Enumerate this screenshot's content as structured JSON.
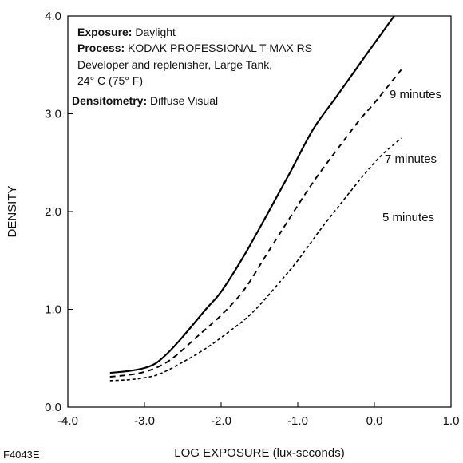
{
  "figure_id": "F4043E",
  "annotation": {
    "lines": [
      {
        "bold": "Exposure:",
        "text": " Daylight"
      },
      {
        "bold": "Process:",
        "text": " KODAK PROFESSIONAL T-MAX RS"
      },
      {
        "bold": "",
        "text": "Developer and replenisher, Large Tank,"
      },
      {
        "bold": "",
        "text": "24° C (75° F)"
      },
      {
        "bold": "Densitometry:",
        "text": " Diffuse Visual"
      }
    ]
  },
  "chart_data": {
    "type": "line",
    "xlabel": "LOG EXPOSURE (lux-seconds)",
    "ylabel": "DENSITY",
    "xlim": [
      -4.0,
      1.0
    ],
    "ylim": [
      0.0,
      4.0
    ],
    "x_ticks": [
      "-4.0",
      "-3.0",
      "-2.0",
      "-1.0",
      "0.0",
      "1.0"
    ],
    "y_ticks": [
      "0.0",
      "1.0",
      "2.0",
      "3.0",
      "4.0"
    ],
    "grid": false,
    "series": [
      {
        "name": "9 minutes",
        "style": "solid",
        "points": [
          [
            -3.45,
            0.35
          ],
          [
            -3.2,
            0.37
          ],
          [
            -3.0,
            0.4
          ],
          [
            -2.85,
            0.45
          ],
          [
            -2.7,
            0.55
          ],
          [
            -2.5,
            0.72
          ],
          [
            -2.2,
            1.0
          ],
          [
            -2.0,
            1.18
          ],
          [
            -1.7,
            1.55
          ],
          [
            -1.4,
            1.97
          ],
          [
            -1.1,
            2.4
          ],
          [
            -0.8,
            2.84
          ],
          [
            -0.5,
            3.17
          ],
          [
            -0.2,
            3.5
          ],
          [
            0.0,
            3.72
          ],
          [
            0.35,
            4.1
          ]
        ]
      },
      {
        "name": "7 minutes",
        "style": "dashed",
        "points": [
          [
            -3.45,
            0.31
          ],
          [
            -3.2,
            0.33
          ],
          [
            -3.0,
            0.36
          ],
          [
            -2.8,
            0.42
          ],
          [
            -2.6,
            0.52
          ],
          [
            -2.3,
            0.73
          ],
          [
            -2.0,
            0.94
          ],
          [
            -1.7,
            1.2
          ],
          [
            -1.4,
            1.57
          ],
          [
            -1.1,
            1.94
          ],
          [
            -0.8,
            2.3
          ],
          [
            -0.5,
            2.62
          ],
          [
            -0.2,
            2.93
          ],
          [
            0.0,
            3.11
          ],
          [
            0.35,
            3.45
          ]
        ]
      },
      {
        "name": "5 minutes",
        "style": "dotted",
        "points": [
          [
            -3.45,
            0.27
          ],
          [
            -3.2,
            0.28
          ],
          [
            -3.0,
            0.3
          ],
          [
            -2.8,
            0.34
          ],
          [
            -2.5,
            0.46
          ],
          [
            -2.2,
            0.6
          ],
          [
            -1.9,
            0.77
          ],
          [
            -1.6,
            0.96
          ],
          [
            -1.3,
            1.22
          ],
          [
            -1.0,
            1.5
          ],
          [
            -0.7,
            1.82
          ],
          [
            -0.4,
            2.12
          ],
          [
            -0.1,
            2.41
          ],
          [
            0.1,
            2.58
          ],
          [
            0.35,
            2.75
          ]
        ]
      }
    ]
  }
}
